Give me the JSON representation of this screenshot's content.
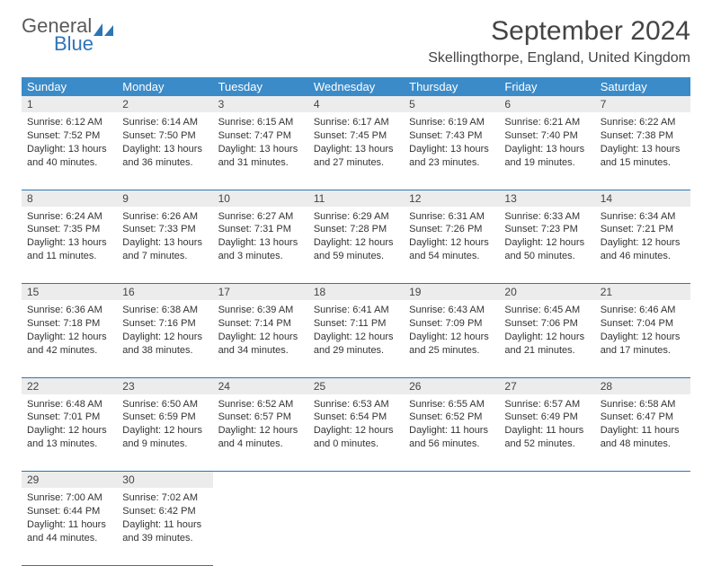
{
  "logo": {
    "word1": "General",
    "word2": "Blue"
  },
  "title": "September 2024",
  "location": "Skellingthorpe, England, United Kingdom",
  "colors": {
    "header_bg": "#3b8bc8",
    "header_text": "#ffffff",
    "daynum_bg": "#ececec",
    "border": "#2e75b6",
    "logo_gray": "#5a5a5a",
    "logo_blue": "#2e75b6"
  },
  "day_headers": [
    "Sunday",
    "Monday",
    "Tuesday",
    "Wednesday",
    "Thursday",
    "Friday",
    "Saturday"
  ],
  "weeks": [
    {
      "nums": [
        "1",
        "2",
        "3",
        "4",
        "5",
        "6",
        "7"
      ],
      "cells": [
        {
          "sunrise": "Sunrise: 6:12 AM",
          "sunset": "Sunset: 7:52 PM",
          "day1": "Daylight: 13 hours",
          "day2": "and 40 minutes."
        },
        {
          "sunrise": "Sunrise: 6:14 AM",
          "sunset": "Sunset: 7:50 PM",
          "day1": "Daylight: 13 hours",
          "day2": "and 36 minutes."
        },
        {
          "sunrise": "Sunrise: 6:15 AM",
          "sunset": "Sunset: 7:47 PM",
          "day1": "Daylight: 13 hours",
          "day2": "and 31 minutes."
        },
        {
          "sunrise": "Sunrise: 6:17 AM",
          "sunset": "Sunset: 7:45 PM",
          "day1": "Daylight: 13 hours",
          "day2": "and 27 minutes."
        },
        {
          "sunrise": "Sunrise: 6:19 AM",
          "sunset": "Sunset: 7:43 PM",
          "day1": "Daylight: 13 hours",
          "day2": "and 23 minutes."
        },
        {
          "sunrise": "Sunrise: 6:21 AM",
          "sunset": "Sunset: 7:40 PM",
          "day1": "Daylight: 13 hours",
          "day2": "and 19 minutes."
        },
        {
          "sunrise": "Sunrise: 6:22 AM",
          "sunset": "Sunset: 7:38 PM",
          "day1": "Daylight: 13 hours",
          "day2": "and 15 minutes."
        }
      ]
    },
    {
      "nums": [
        "8",
        "9",
        "10",
        "11",
        "12",
        "13",
        "14"
      ],
      "cells": [
        {
          "sunrise": "Sunrise: 6:24 AM",
          "sunset": "Sunset: 7:35 PM",
          "day1": "Daylight: 13 hours",
          "day2": "and 11 minutes."
        },
        {
          "sunrise": "Sunrise: 6:26 AM",
          "sunset": "Sunset: 7:33 PM",
          "day1": "Daylight: 13 hours",
          "day2": "and 7 minutes."
        },
        {
          "sunrise": "Sunrise: 6:27 AM",
          "sunset": "Sunset: 7:31 PM",
          "day1": "Daylight: 13 hours",
          "day2": "and 3 minutes."
        },
        {
          "sunrise": "Sunrise: 6:29 AM",
          "sunset": "Sunset: 7:28 PM",
          "day1": "Daylight: 12 hours",
          "day2": "and 59 minutes."
        },
        {
          "sunrise": "Sunrise: 6:31 AM",
          "sunset": "Sunset: 7:26 PM",
          "day1": "Daylight: 12 hours",
          "day2": "and 54 minutes."
        },
        {
          "sunrise": "Sunrise: 6:33 AM",
          "sunset": "Sunset: 7:23 PM",
          "day1": "Daylight: 12 hours",
          "day2": "and 50 minutes."
        },
        {
          "sunrise": "Sunrise: 6:34 AM",
          "sunset": "Sunset: 7:21 PM",
          "day1": "Daylight: 12 hours",
          "day2": "and 46 minutes."
        }
      ]
    },
    {
      "nums": [
        "15",
        "16",
        "17",
        "18",
        "19",
        "20",
        "21"
      ],
      "cells": [
        {
          "sunrise": "Sunrise: 6:36 AM",
          "sunset": "Sunset: 7:18 PM",
          "day1": "Daylight: 12 hours",
          "day2": "and 42 minutes."
        },
        {
          "sunrise": "Sunrise: 6:38 AM",
          "sunset": "Sunset: 7:16 PM",
          "day1": "Daylight: 12 hours",
          "day2": "and 38 minutes."
        },
        {
          "sunrise": "Sunrise: 6:39 AM",
          "sunset": "Sunset: 7:14 PM",
          "day1": "Daylight: 12 hours",
          "day2": "and 34 minutes."
        },
        {
          "sunrise": "Sunrise: 6:41 AM",
          "sunset": "Sunset: 7:11 PM",
          "day1": "Daylight: 12 hours",
          "day2": "and 29 minutes."
        },
        {
          "sunrise": "Sunrise: 6:43 AM",
          "sunset": "Sunset: 7:09 PM",
          "day1": "Daylight: 12 hours",
          "day2": "and 25 minutes."
        },
        {
          "sunrise": "Sunrise: 6:45 AM",
          "sunset": "Sunset: 7:06 PM",
          "day1": "Daylight: 12 hours",
          "day2": "and 21 minutes."
        },
        {
          "sunrise": "Sunrise: 6:46 AM",
          "sunset": "Sunset: 7:04 PM",
          "day1": "Daylight: 12 hours",
          "day2": "and 17 minutes."
        }
      ]
    },
    {
      "nums": [
        "22",
        "23",
        "24",
        "25",
        "26",
        "27",
        "28"
      ],
      "cells": [
        {
          "sunrise": "Sunrise: 6:48 AM",
          "sunset": "Sunset: 7:01 PM",
          "day1": "Daylight: 12 hours",
          "day2": "and 13 minutes."
        },
        {
          "sunrise": "Sunrise: 6:50 AM",
          "sunset": "Sunset: 6:59 PM",
          "day1": "Daylight: 12 hours",
          "day2": "and 9 minutes."
        },
        {
          "sunrise": "Sunrise: 6:52 AM",
          "sunset": "Sunset: 6:57 PM",
          "day1": "Daylight: 12 hours",
          "day2": "and 4 minutes."
        },
        {
          "sunrise": "Sunrise: 6:53 AM",
          "sunset": "Sunset: 6:54 PM",
          "day1": "Daylight: 12 hours",
          "day2": "and 0 minutes."
        },
        {
          "sunrise": "Sunrise: 6:55 AM",
          "sunset": "Sunset: 6:52 PM",
          "day1": "Daylight: 11 hours",
          "day2": "and 56 minutes."
        },
        {
          "sunrise": "Sunrise: 6:57 AM",
          "sunset": "Sunset: 6:49 PM",
          "day1": "Daylight: 11 hours",
          "day2": "and 52 minutes."
        },
        {
          "sunrise": "Sunrise: 6:58 AM",
          "sunset": "Sunset: 6:47 PM",
          "day1": "Daylight: 11 hours",
          "day2": "and 48 minutes."
        }
      ]
    },
    {
      "nums": [
        "29",
        "30",
        "",
        "",
        "",
        "",
        ""
      ],
      "cells": [
        {
          "sunrise": "Sunrise: 7:00 AM",
          "sunset": "Sunset: 6:44 PM",
          "day1": "Daylight: 11 hours",
          "day2": "and 44 minutes."
        },
        {
          "sunrise": "Sunrise: 7:02 AM",
          "sunset": "Sunset: 6:42 PM",
          "day1": "Daylight: 11 hours",
          "day2": "and 39 minutes."
        },
        null,
        null,
        null,
        null,
        null
      ]
    }
  ]
}
